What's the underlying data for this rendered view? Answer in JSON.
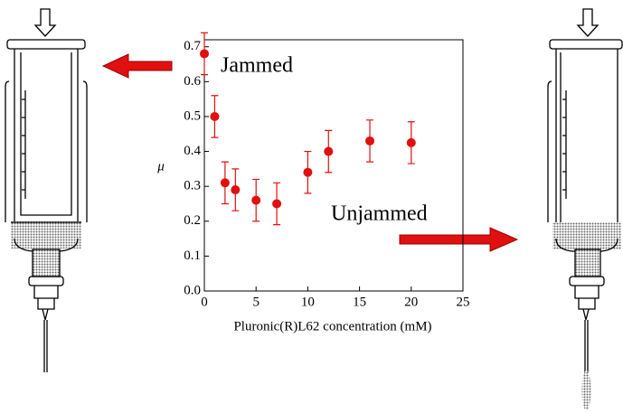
{
  "chart_data": {
    "type": "scatter",
    "x_label": "Pluronic(R)L62 concentration (mM)",
    "y_label": "μ",
    "annotations": [
      "Jammed",
      "Unjammed"
    ],
    "x": [
      0,
      1,
      2,
      3,
      5,
      7,
      10,
      12,
      16,
      20
    ],
    "values": [
      0.68,
      0.5,
      0.31,
      0.29,
      0.26,
      0.25,
      0.34,
      0.4,
      0.43,
      0.425
    ],
    "errors": [
      0.06,
      0.06,
      0.06,
      0.06,
      0.06,
      0.06,
      0.06,
      0.06,
      0.06,
      0.06
    ],
    "color": "#e01010",
    "xlim": [
      0,
      25
    ],
    "xticks": [
      0,
      5,
      10,
      15,
      20,
      25
    ],
    "ylim": [
      0,
      0.72
    ],
    "yticks": [
      {
        "value": 0,
        "label": "0.0"
      },
      0.1,
      0.2,
      0.3,
      0.4,
      0.5,
      0.6,
      0.7
    ]
  }
}
